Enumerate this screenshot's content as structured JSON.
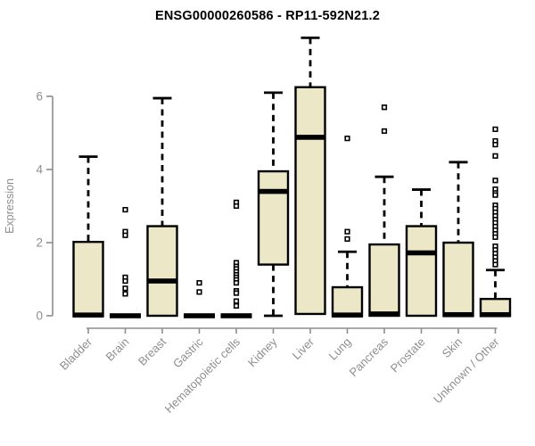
{
  "chart_data": {
    "type": "boxplot",
    "title": "ENSG00000260586 - RP11-592N21.2",
    "ylabel": "Expression",
    "xlabel": "",
    "yticks": [
      0,
      2,
      4,
      6
    ],
    "ylim": [
      0,
      7.8
    ],
    "grid": false,
    "legend": "none",
    "categories": [
      "Bladder",
      "Brain",
      "Breast",
      "Gastric",
      "Hematopoietic cells",
      "Kidney",
      "Liver",
      "Lung",
      "Pancreas",
      "Prostate",
      "Skin",
      "Unknown / Other"
    ],
    "series": [
      {
        "category": "Bladder",
        "low": 0,
        "q1": 0,
        "median": 0.02,
        "q3": 2.02,
        "high": 4.35,
        "outliers": []
      },
      {
        "category": "Brain",
        "low": 0,
        "q1": 0,
        "median": 0,
        "q3": 0,
        "high": 0,
        "outliers": [
          2.9,
          2.3,
          2.2,
          1.05,
          0.95,
          0.75,
          0.6
        ]
      },
      {
        "category": "Breast",
        "low": 0,
        "q1": 0,
        "median": 0.95,
        "q3": 2.45,
        "high": 5.95,
        "outliers": []
      },
      {
        "category": "Gastric",
        "low": 0,
        "q1": 0,
        "median": 0,
        "q3": 0,
        "high": 0,
        "outliers": [
          0.9,
          0.65
        ]
      },
      {
        "category": "Hematopoietic cells",
        "low": 0,
        "q1": 0,
        "median": 0,
        "q3": 0,
        "high": 0,
        "outliers": [
          3.1,
          3.0,
          1.45,
          1.35,
          1.28,
          1.2,
          1.12,
          1.05,
          0.98,
          0.9,
          0.68,
          0.62,
          0.4,
          0.27
        ]
      },
      {
        "category": "Kidney",
        "low": 0,
        "q1": 1.4,
        "median": 3.4,
        "q3": 3.95,
        "high": 6.1,
        "outliers": []
      },
      {
        "category": "Liver",
        "low": 0,
        "q1": 0.05,
        "median": 4.88,
        "q3": 6.25,
        "high": 7.6,
        "outliers": []
      },
      {
        "category": "Lung",
        "low": 0,
        "q1": 0,
        "median": 0.02,
        "q3": 0.78,
        "high": 1.75,
        "outliers": [
          4.85,
          2.3,
          2.1
        ]
      },
      {
        "category": "Pancreas",
        "low": 0,
        "q1": 0,
        "median": 0.05,
        "q3": 1.95,
        "high": 3.8,
        "outliers": [
          5.7,
          5.05
        ]
      },
      {
        "category": "Prostate",
        "low": 0,
        "q1": 0,
        "median": 1.72,
        "q3": 2.45,
        "high": 3.45,
        "outliers": []
      },
      {
        "category": "Skin",
        "low": 0,
        "q1": 0,
        "median": 0.03,
        "q3": 2.0,
        "high": 4.2,
        "outliers": []
      },
      {
        "category": "Unknown / Other",
        "low": 0,
        "q1": 0,
        "median": 0.03,
        "q3": 0.46,
        "high": 1.25,
        "outliers": [
          5.1,
          4.78,
          4.68,
          4.37,
          3.7,
          3.46,
          3.36,
          3.3,
          3.02,
          2.93,
          2.83,
          2.73,
          2.63,
          2.54,
          2.44,
          2.34,
          2.24,
          2.15,
          1.9,
          1.8,
          1.7,
          1.6,
          1.5,
          1.4
        ]
      }
    ],
    "style": {
      "box_fill": "#ece7c7",
      "box_stroke": "#000000",
      "median_color": "#000000",
      "whisker_color": "#000000",
      "outlier_stroke": "#000000",
      "outlier_fill": "#ffffff",
      "axis_color": "#8e8e8e",
      "tick_label_color": "#8e8e8e",
      "title_color": "#000000"
    }
  }
}
